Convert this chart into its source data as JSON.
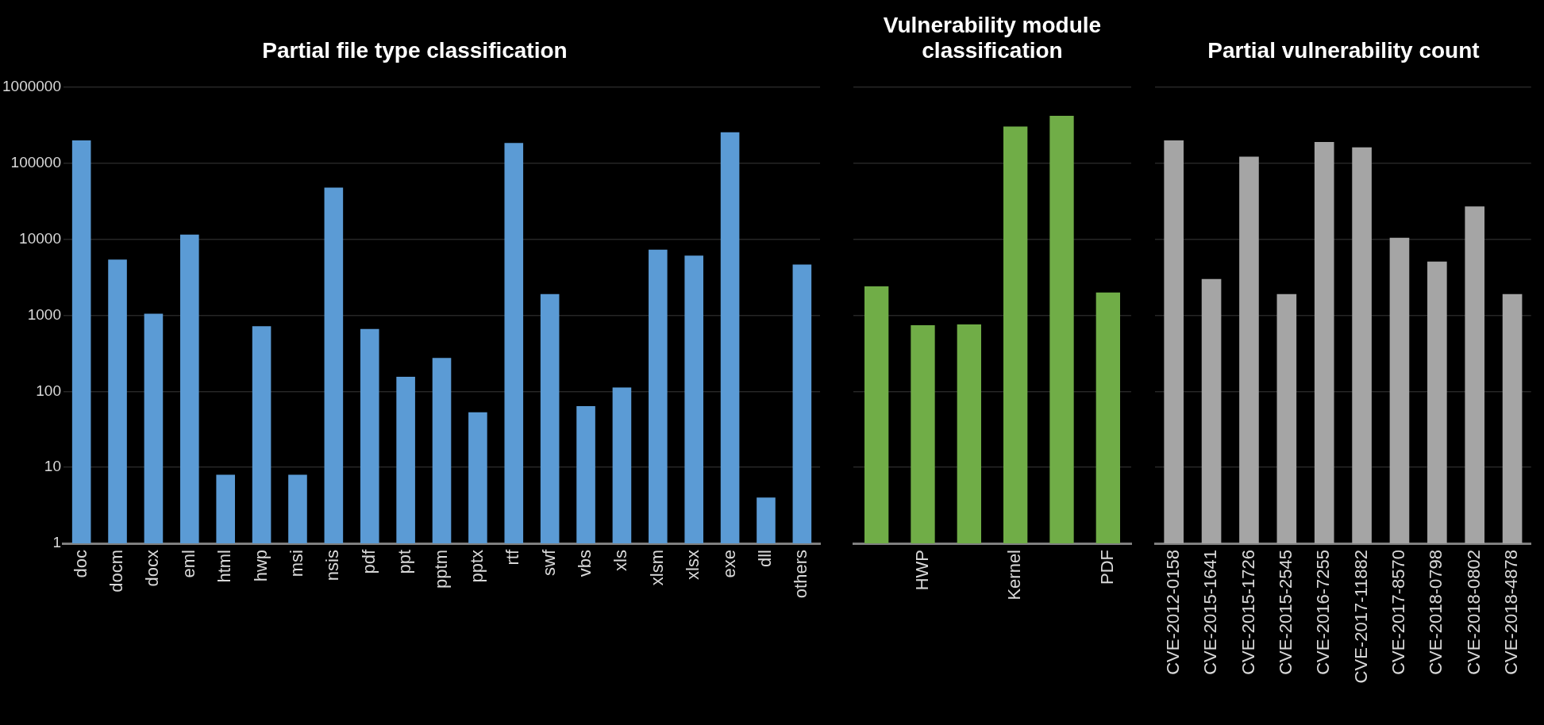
{
  "chart_data": [
    {
      "type": "bar",
      "title": "Partial file type classification",
      "categories": [
        "doc",
        "docm",
        "docx",
        "eml",
        "html",
        "hwp",
        "msi",
        "nsis",
        "pdf",
        "ppt",
        "pptm",
        "pptx",
        "rtf",
        "swf",
        "vbs",
        "xls",
        "xlsm",
        "xlsx",
        "exe",
        "dll",
        "others"
      ],
      "values": [
        200000,
        5400,
        1050,
        11500,
        8,
        720,
        8,
        48000,
        660,
        155,
        275,
        53,
        185000,
        1900,
        64,
        112,
        7300,
        6100,
        255000,
        4,
        4650
      ],
      "color": "#5b9bd5",
      "log": true,
      "ylim": [
        1,
        1000000
      ],
      "yticks": [
        1,
        10,
        100,
        1000,
        10000,
        100000,
        1000000
      ],
      "grid": "y",
      "legend": false
    },
    {
      "type": "bar",
      "title": "Vulnerability module classification",
      "categories": [
        null,
        "HWP",
        null,
        "Kernel",
        null,
        "PDF"
      ],
      "values": [
        2400,
        740,
        760,
        305000,
        420000,
        2000
      ],
      "color": "#70ad47",
      "log": true,
      "ylim": [
        1,
        1000000
      ],
      "yticks": [
        1,
        10,
        100,
        1000,
        10000,
        100000,
        1000000
      ],
      "grid": "y",
      "legend": false,
      "tick_labels": "x"
    },
    {
      "type": "bar",
      "title": "Partial vulnerability count",
      "categories": [
        "CVE-2012-0158",
        "CVE-2015-1641",
        "CVE-2015-1726",
        "CVE-2015-2545",
        "CVE-2016-7255",
        "CVE-2017-11882",
        "CVE-2017-8570",
        "CVE-2018-0798",
        "CVE-2018-0802",
        "CVE-2018-4878"
      ],
      "values": [
        200000,
        3000,
        122000,
        1900,
        190000,
        162000,
        10500,
        5100,
        27000,
        1900
      ],
      "color": "#a5a5a5",
      "log": true,
      "ylim": [
        1,
        1000000
      ],
      "yticks": [
        1,
        10,
        100,
        1000,
        10000,
        100000,
        1000000
      ],
      "grid": "y",
      "legend": false,
      "tick_labels": "x"
    }
  ]
}
